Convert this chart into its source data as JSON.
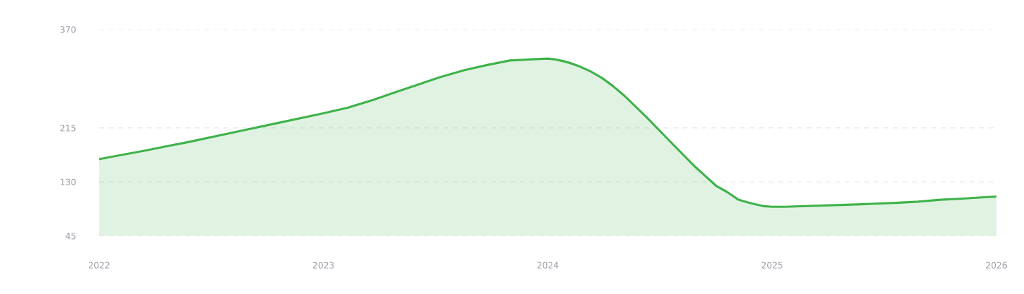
{
  "chart_data": {
    "type": "area",
    "series": [
      {
        "color": "#3fb24b",
        "x": [
          2022.0,
          2022.2,
          2022.4,
          2022.6,
          2022.8,
          2023.0,
          2023.11,
          2023.22,
          2023.32,
          2023.42,
          2023.52,
          2023.63,
          2023.73,
          2023.83,
          2023.93,
          2024.0,
          2024.03,
          2024.07,
          2024.1,
          2024.14,
          2024.19,
          2024.24,
          2024.29,
          2024.34,
          2024.44,
          2024.55,
          2024.65,
          2024.75,
          2024.8,
          2024.85,
          2024.9,
          2024.96,
          2025.0,
          2025.06,
          2025.24,
          2025.4,
          2025.55,
          2025.65,
          2025.75,
          2025.86,
          2026.0
        ],
        "values": [
          166,
          179,
          193,
          208,
          223,
          238,
          247,
          259,
          271,
          283,
          295,
          306,
          314,
          321,
          323,
          324,
          323,
          320,
          317,
          312,
          304,
          294,
          281,
          266,
          232,
          192,
          156,
          124,
          114,
          102,
          97,
          92,
          91,
          91,
          93,
          95,
          97,
          99,
          102,
          104,
          107
        ]
      }
    ],
    "xlim": [
      2022,
      2026
    ],
    "xticks": [
      2022,
      2023,
      2024,
      2025,
      2026
    ],
    "ylim": [
      45,
      370
    ],
    "yticks": [
      45,
      130,
      215,
      370
    ],
    "grid": "y",
    "line_style": "solid"
  }
}
